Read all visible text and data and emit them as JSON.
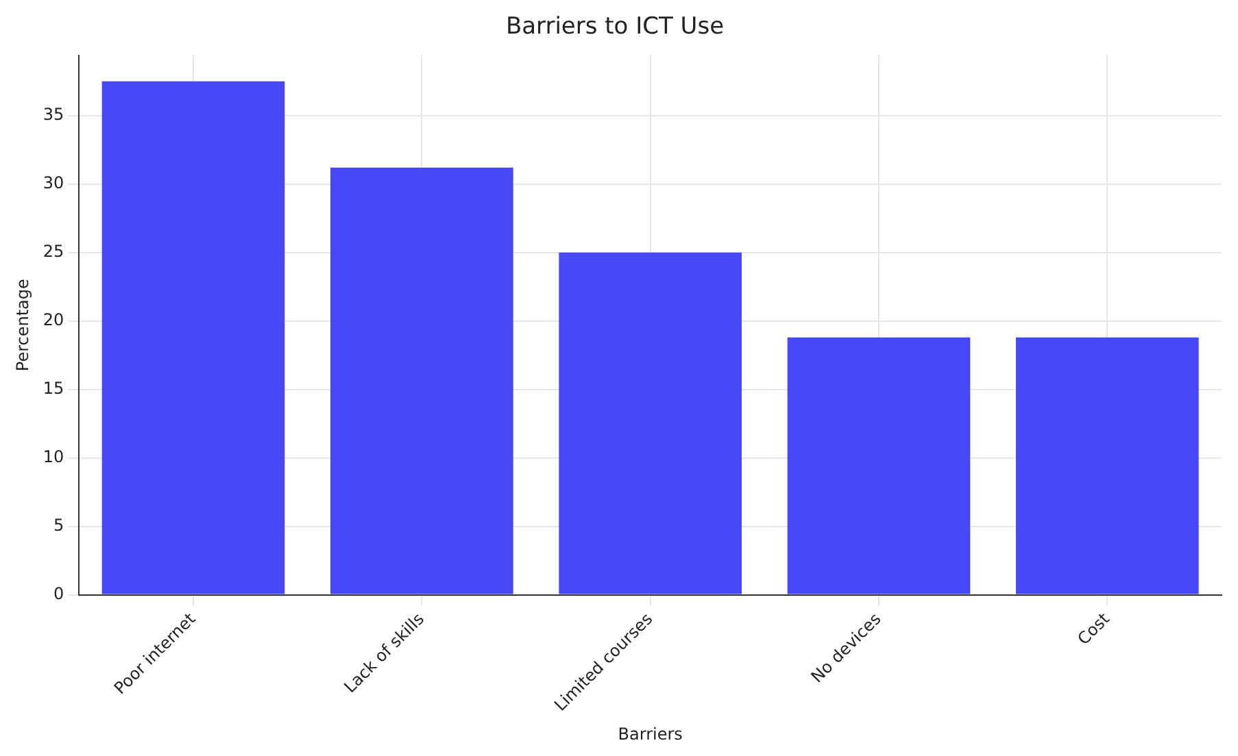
{
  "chart_data": {
    "type": "bar",
    "title": "Barriers to ICT Use",
    "xlabel": "Barriers",
    "ylabel": "Percentage",
    "categories": [
      "Poor internet",
      "Lack of skills",
      "Limited courses",
      "No devices",
      "Cost"
    ],
    "values": [
      37.5,
      31.2,
      25,
      18.8,
      18.8
    ],
    "color": "#4848f6",
    "ylim": [
      0,
      39.4
    ],
    "yticks": [
      0,
      5,
      10,
      15,
      20,
      25,
      30,
      35
    ],
    "grid": true
  }
}
